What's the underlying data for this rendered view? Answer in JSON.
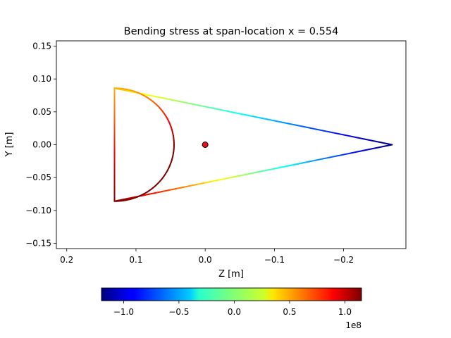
{
  "chart_data": {
    "type": "line",
    "title": "Bending stress at span-location x = 0.554",
    "xlabel": "Z [m]",
    "ylabel": "Y [m]",
    "xlim": [
      0.215,
      -0.29
    ],
    "ylim": [
      -0.158,
      0.158
    ],
    "x_inverted": true,
    "grid": false,
    "xticks": [
      0.2,
      0.1,
      0.0,
      -0.1,
      -0.2
    ],
    "xtick_labels": [
      "0.2",
      "0.1",
      "0.0",
      "−0.1",
      "−0.2"
    ],
    "yticks": [
      0.15,
      0.1,
      0.05,
      0.0,
      -0.05,
      -0.1,
      -0.15
    ],
    "ytick_labels": [
      "0.15",
      "0.10",
      "0.05",
      "0.00",
      "−0.05",
      "−0.10",
      "−0.15"
    ],
    "section": {
      "arc_center": [
        0.131,
        0.0
      ],
      "arc_radius": 0.086,
      "arc_from_deg": 90,
      "arc_to_deg": 270,
      "web_z": 0.131,
      "web_top_y": 0.086,
      "web_bottom_y": -0.086,
      "tail_tip": [
        -0.27,
        0.0
      ],
      "stress_top": 0.45,
      "stress_bottom": 1.15,
      "stress_left": 1.15,
      "stress_tip": -1.2
    },
    "marker": {
      "z": 0.0,
      "y": 0.0,
      "color": "#e8121a"
    },
    "colorbar": {
      "colormap": "jet",
      "min": -1.2,
      "max": 1.15,
      "ticks": [
        -1.0,
        -0.5,
        0.0,
        0.5,
        1.0
      ],
      "tick_labels": [
        "−1.0",
        "−0.5",
        "0.0",
        "0.5",
        "1.0"
      ],
      "offset_label": "1e8"
    }
  }
}
